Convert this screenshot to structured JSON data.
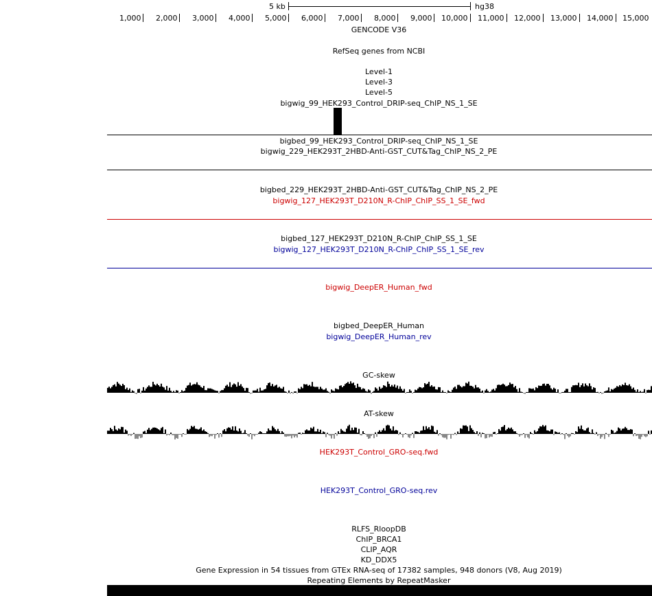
{
  "ruler": {
    "scale_label": "5 kb",
    "assembly": "hg38",
    "positions": [
      "1,000",
      "2,000",
      "3,000",
      "4,000",
      "5,000",
      "6,000",
      "7,000",
      "8,000",
      "9,000",
      "10,000",
      "11,000",
      "12,000",
      "13,000",
      "14,000",
      "15,000"
    ]
  },
  "tracks": [
    {
      "id": "gencode",
      "label": "GENCODE V36",
      "color": "#000000"
    },
    {
      "id": "refseq",
      "label": "RefSeq genes from NCBI",
      "color": "#000000"
    },
    {
      "id": "level1",
      "label": "Level-1",
      "color": "#000000"
    },
    {
      "id": "level3",
      "label": "Level-3",
      "color": "#000000"
    },
    {
      "id": "level5",
      "label": "Level-5",
      "color": "#000000"
    },
    {
      "id": "bw99",
      "label": "bigwig_99_HEK293_Control_DRIP-seq_ChIP_NS_1_SE",
      "color": "#000000"
    },
    {
      "id": "bb99",
      "label": "bigbed_99_HEK293_Control_DRIP-seq_ChIP_NS_1_SE",
      "color": "#000000"
    },
    {
      "id": "bw229",
      "label": "bigwig_229_HEK293T_2HBD-Anti-GST_CUT&Tag_ChIP_NS_2_PE",
      "color": "#000000"
    },
    {
      "id": "bb229",
      "label": "bigbed_229_HEK293T_2HBD-Anti-GST_CUT&Tag_ChIP_NS_2_PE",
      "color": "#000000"
    },
    {
      "id": "bw127fwd",
      "label": "bigwig_127_HEK293T_D210N_R-ChIP_ChIP_SS_1_SE_fwd",
      "color": "#cc0000"
    },
    {
      "id": "bb127",
      "label": "bigbed_127_HEK293T_D210N_R-ChIP_ChIP_SS_1_SE",
      "color": "#000000"
    },
    {
      "id": "bw127rev",
      "label": "bigwig_127_HEK293T_D210N_R-ChIP_ChIP_SS_1_SE_rev",
      "color": "#000099"
    },
    {
      "id": "deeperfwd",
      "label": "bigwig_DeepER_Human_fwd",
      "color": "#cc0000"
    },
    {
      "id": "deeperbb",
      "label": "bigbed_DeepER_Human",
      "color": "#000000"
    },
    {
      "id": "deeperrev",
      "label": "bigwig_DeepER_Human_rev",
      "color": "#000099"
    },
    {
      "id": "gcskew",
      "label": "GC-skew",
      "color": "#000000"
    },
    {
      "id": "atskew",
      "label": "AT-skew",
      "color": "#000000"
    },
    {
      "id": "grofwd",
      "label": "HEK293T_Control_GRO-seq.fwd",
      "color": "#cc0000"
    },
    {
      "id": "grorev",
      "label": "HEK293T_Control_GRO-seq.rev",
      "color": "#000099"
    },
    {
      "id": "rlfs",
      "label": "RLFS_RloopDB",
      "color": "#000000"
    },
    {
      "id": "brca1",
      "label": "ChIP_BRCA1",
      "color": "#000000"
    },
    {
      "id": "aqr",
      "label": "CLIP_AQR",
      "color": "#000000"
    },
    {
      "id": "ddx5",
      "label": "KD_DDX5",
      "color": "#000000"
    },
    {
      "id": "gtex",
      "label": "Gene Expression in 54 tissues from GTEx RNA-seq of 17382 samples, 948 donors (V8, Aug 2019)",
      "color": "#000000"
    },
    {
      "id": "rmsk",
      "label": "Repeating Elements by RepeatMasker",
      "color": "#000000"
    }
  ],
  "colors": {
    "fwd_strand": "#cc0000",
    "rev_strand": "#000099",
    "signal": "#000000",
    "negative_signal": "#888888"
  }
}
